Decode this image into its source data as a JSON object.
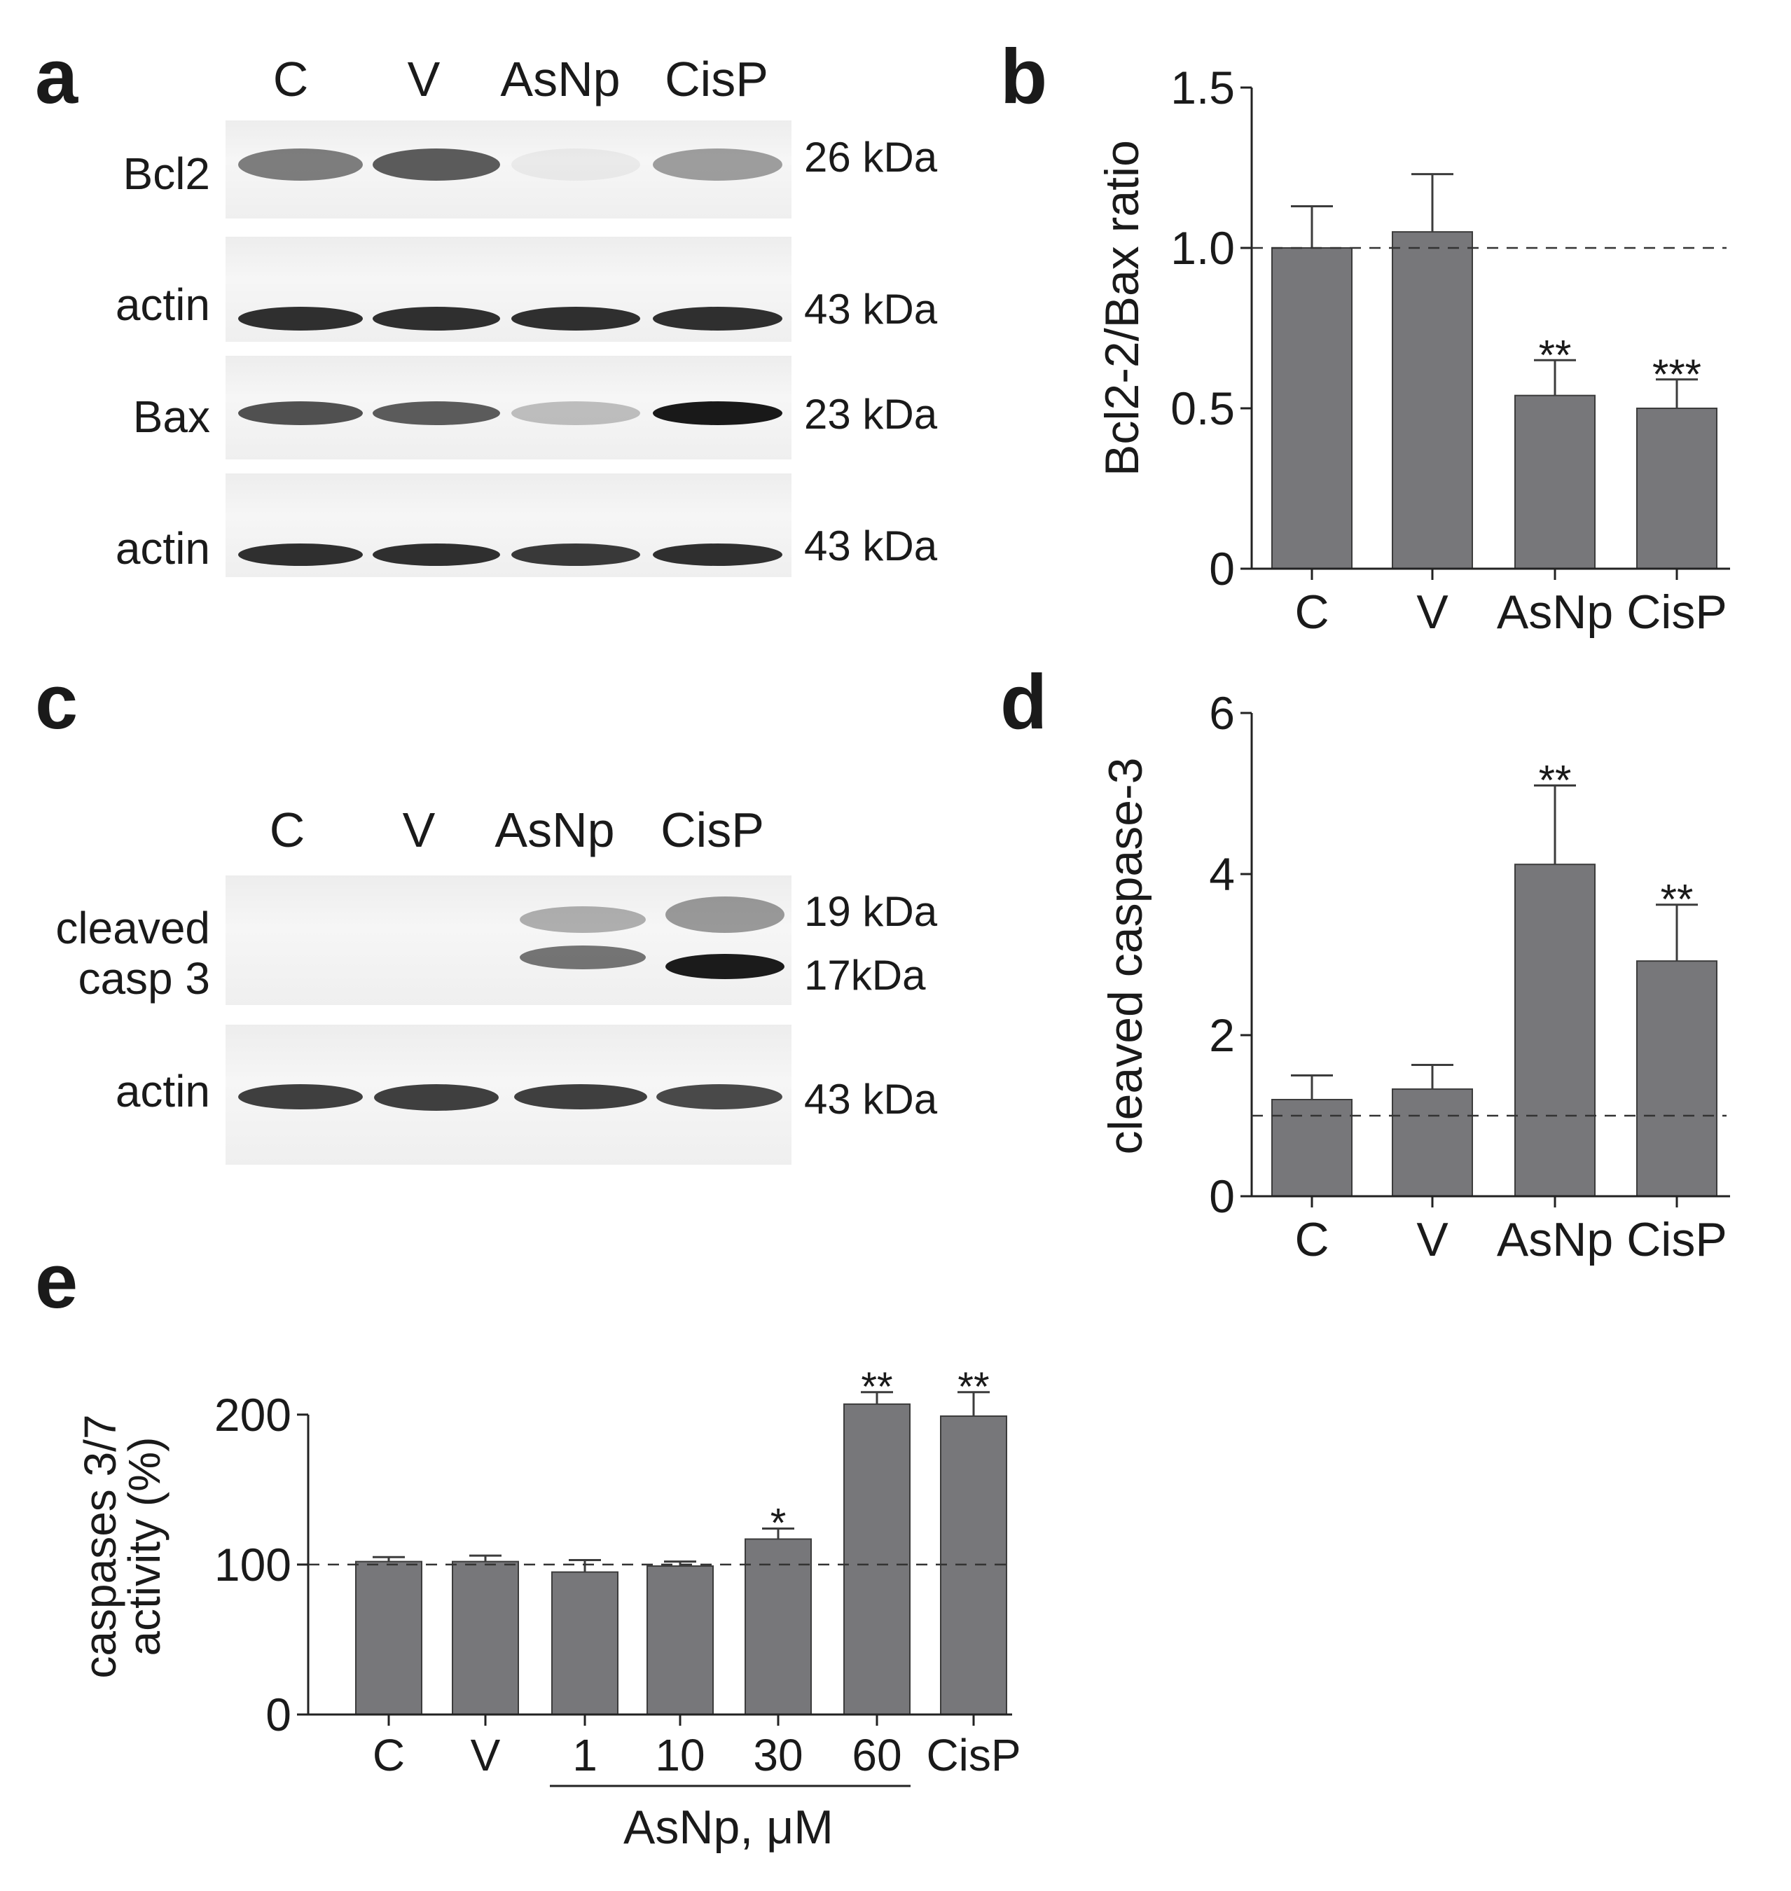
{
  "panels": {
    "a": {
      "letter": "a",
      "lanes": [
        "C",
        "V",
        "AsNp",
        "CisP"
      ],
      "rows": [
        {
          "label": "Bcl2",
          "kda": "26 kDa",
          "bands": [
            0.55,
            0.7,
            0.05,
            0.4
          ]
        },
        {
          "label": "actin",
          "kda": "43 kDa",
          "bands": [
            0.9,
            0.9,
            0.9,
            0.9
          ]
        },
        {
          "label": "Bax",
          "kda": "23 kDa",
          "bands": [
            0.75,
            0.7,
            0.25,
            1.0
          ]
        },
        {
          "label": "actin",
          "kda": "43 kDa",
          "bands": [
            0.9,
            0.9,
            0.85,
            0.9
          ]
        }
      ]
    },
    "b": {
      "letter": "b"
    },
    "c": {
      "letter": "c",
      "lanes": [
        "C",
        "V",
        "AsNp",
        "CisP"
      ],
      "row1_label_line1": "cleaved",
      "row1_label_line2": "casp 3",
      "row1_kda_top": "19 kDa",
      "row1_kda_bottom": "17kDa",
      "row2_label": "actin",
      "row2_kda": "43 kDa"
    },
    "d": {
      "letter": "d"
    },
    "e": {
      "letter": "e",
      "group_label": "AsNp, μM"
    }
  },
  "chart_data": [
    {
      "panel": "b",
      "type": "bar",
      "categories": [
        "C",
        "V",
        "AsNp",
        "CisP"
      ],
      "values": [
        1.0,
        1.05,
        0.54,
        0.5
      ],
      "errors": [
        0.13,
        0.18,
        0.11,
        0.09
      ],
      "significance": [
        "",
        "",
        "**",
        "***"
      ],
      "ylabel": "Bcl2-2/Bax ratio",
      "ylim": [
        0,
        1.5
      ],
      "yticks": [
        "0",
        "0.5",
        "1.0",
        "1.5"
      ],
      "ytick_values": [
        0,
        0.5,
        1.0,
        1.5
      ],
      "reference_line": 1.0,
      "bar_color": "#77777a"
    },
    {
      "panel": "d",
      "type": "bar",
      "categories": [
        "C",
        "V",
        "AsNp",
        "CisP"
      ],
      "values": [
        1.2,
        1.33,
        4.12,
        2.92
      ],
      "errors": [
        0.3,
        0.3,
        0.98,
        0.7
      ],
      "significance": [
        "",
        "",
        "**",
        "**"
      ],
      "ylabel": "cleaved caspase-3",
      "ylim": [
        0,
        6
      ],
      "yticks": [
        "0",
        "2",
        "4",
        "6"
      ],
      "ytick_values": [
        0,
        2,
        4,
        6
      ],
      "reference_line": 1.0,
      "bar_color": "#77777a"
    },
    {
      "panel": "e",
      "type": "bar",
      "categories": [
        "C",
        "V",
        "1",
        "10",
        "30",
        "60",
        "CisP"
      ],
      "values": [
        102,
        102,
        95,
        99,
        117,
        207,
        199
      ],
      "errors": [
        3,
        4,
        8,
        3,
        7,
        8,
        16
      ],
      "significance": [
        "",
        "",
        "",
        "",
        "*",
        "**",
        "**"
      ],
      "ylabel_line1": "caspases 3/7",
      "ylabel_line2": "activity (%)",
      "ylim": [
        0,
        220
      ],
      "yticks": [
        "0",
        "100",
        "200"
      ],
      "ytick_values": [
        0,
        100,
        200
      ],
      "reference_line": 100,
      "bar_color": "#77777a"
    }
  ]
}
